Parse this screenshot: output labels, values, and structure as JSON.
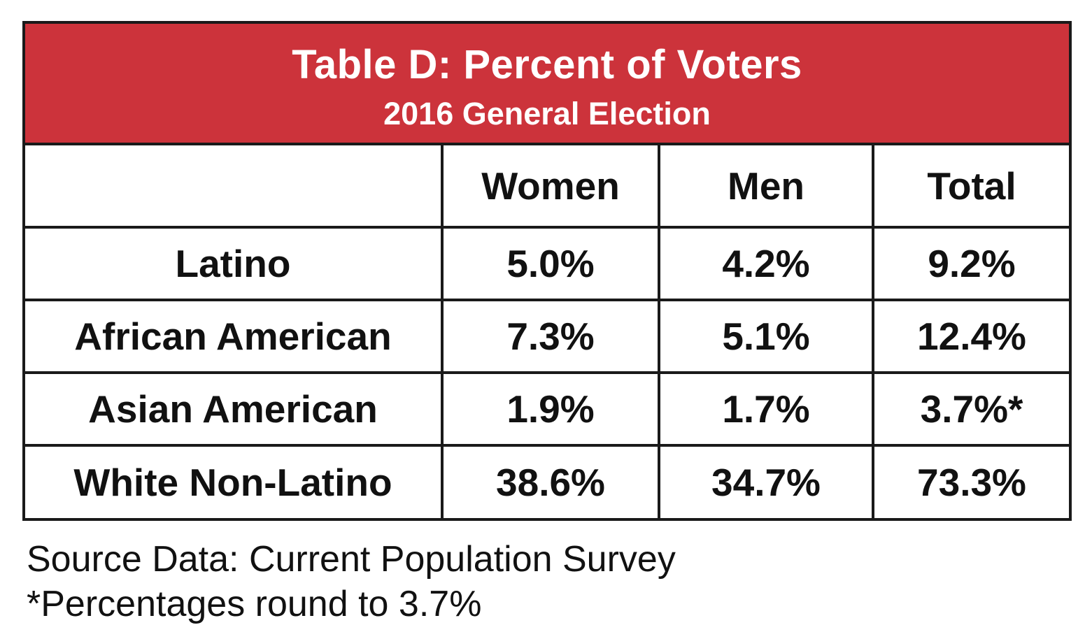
{
  "chart_data": {
    "type": "table",
    "title": "Table D: Percent of Voters",
    "subtitle": "2016 General Election",
    "columns": [
      "",
      "Women",
      "Men",
      "Total"
    ],
    "rows": [
      {
        "label": "Latino",
        "women": "5.0%",
        "men": "4.2%",
        "total": "9.2%"
      },
      {
        "label": "African American",
        "women": "7.3%",
        "men": "5.1%",
        "total": "12.4%"
      },
      {
        "label": "Asian American",
        "women": "1.9%",
        "men": "1.7%",
        "total": "3.7%*"
      },
      {
        "label": "White Non-Latino",
        "women": "38.6%",
        "men": "34.7%",
        "total": "73.3%"
      }
    ],
    "notes": [
      "Source Data: Current Population Survey",
      "*Percentages round to 3.7%"
    ]
  },
  "colors": {
    "banner": "#cc333b",
    "banner_text": "#ffffff",
    "border": "#1a1a1a",
    "text": "#111111"
  }
}
